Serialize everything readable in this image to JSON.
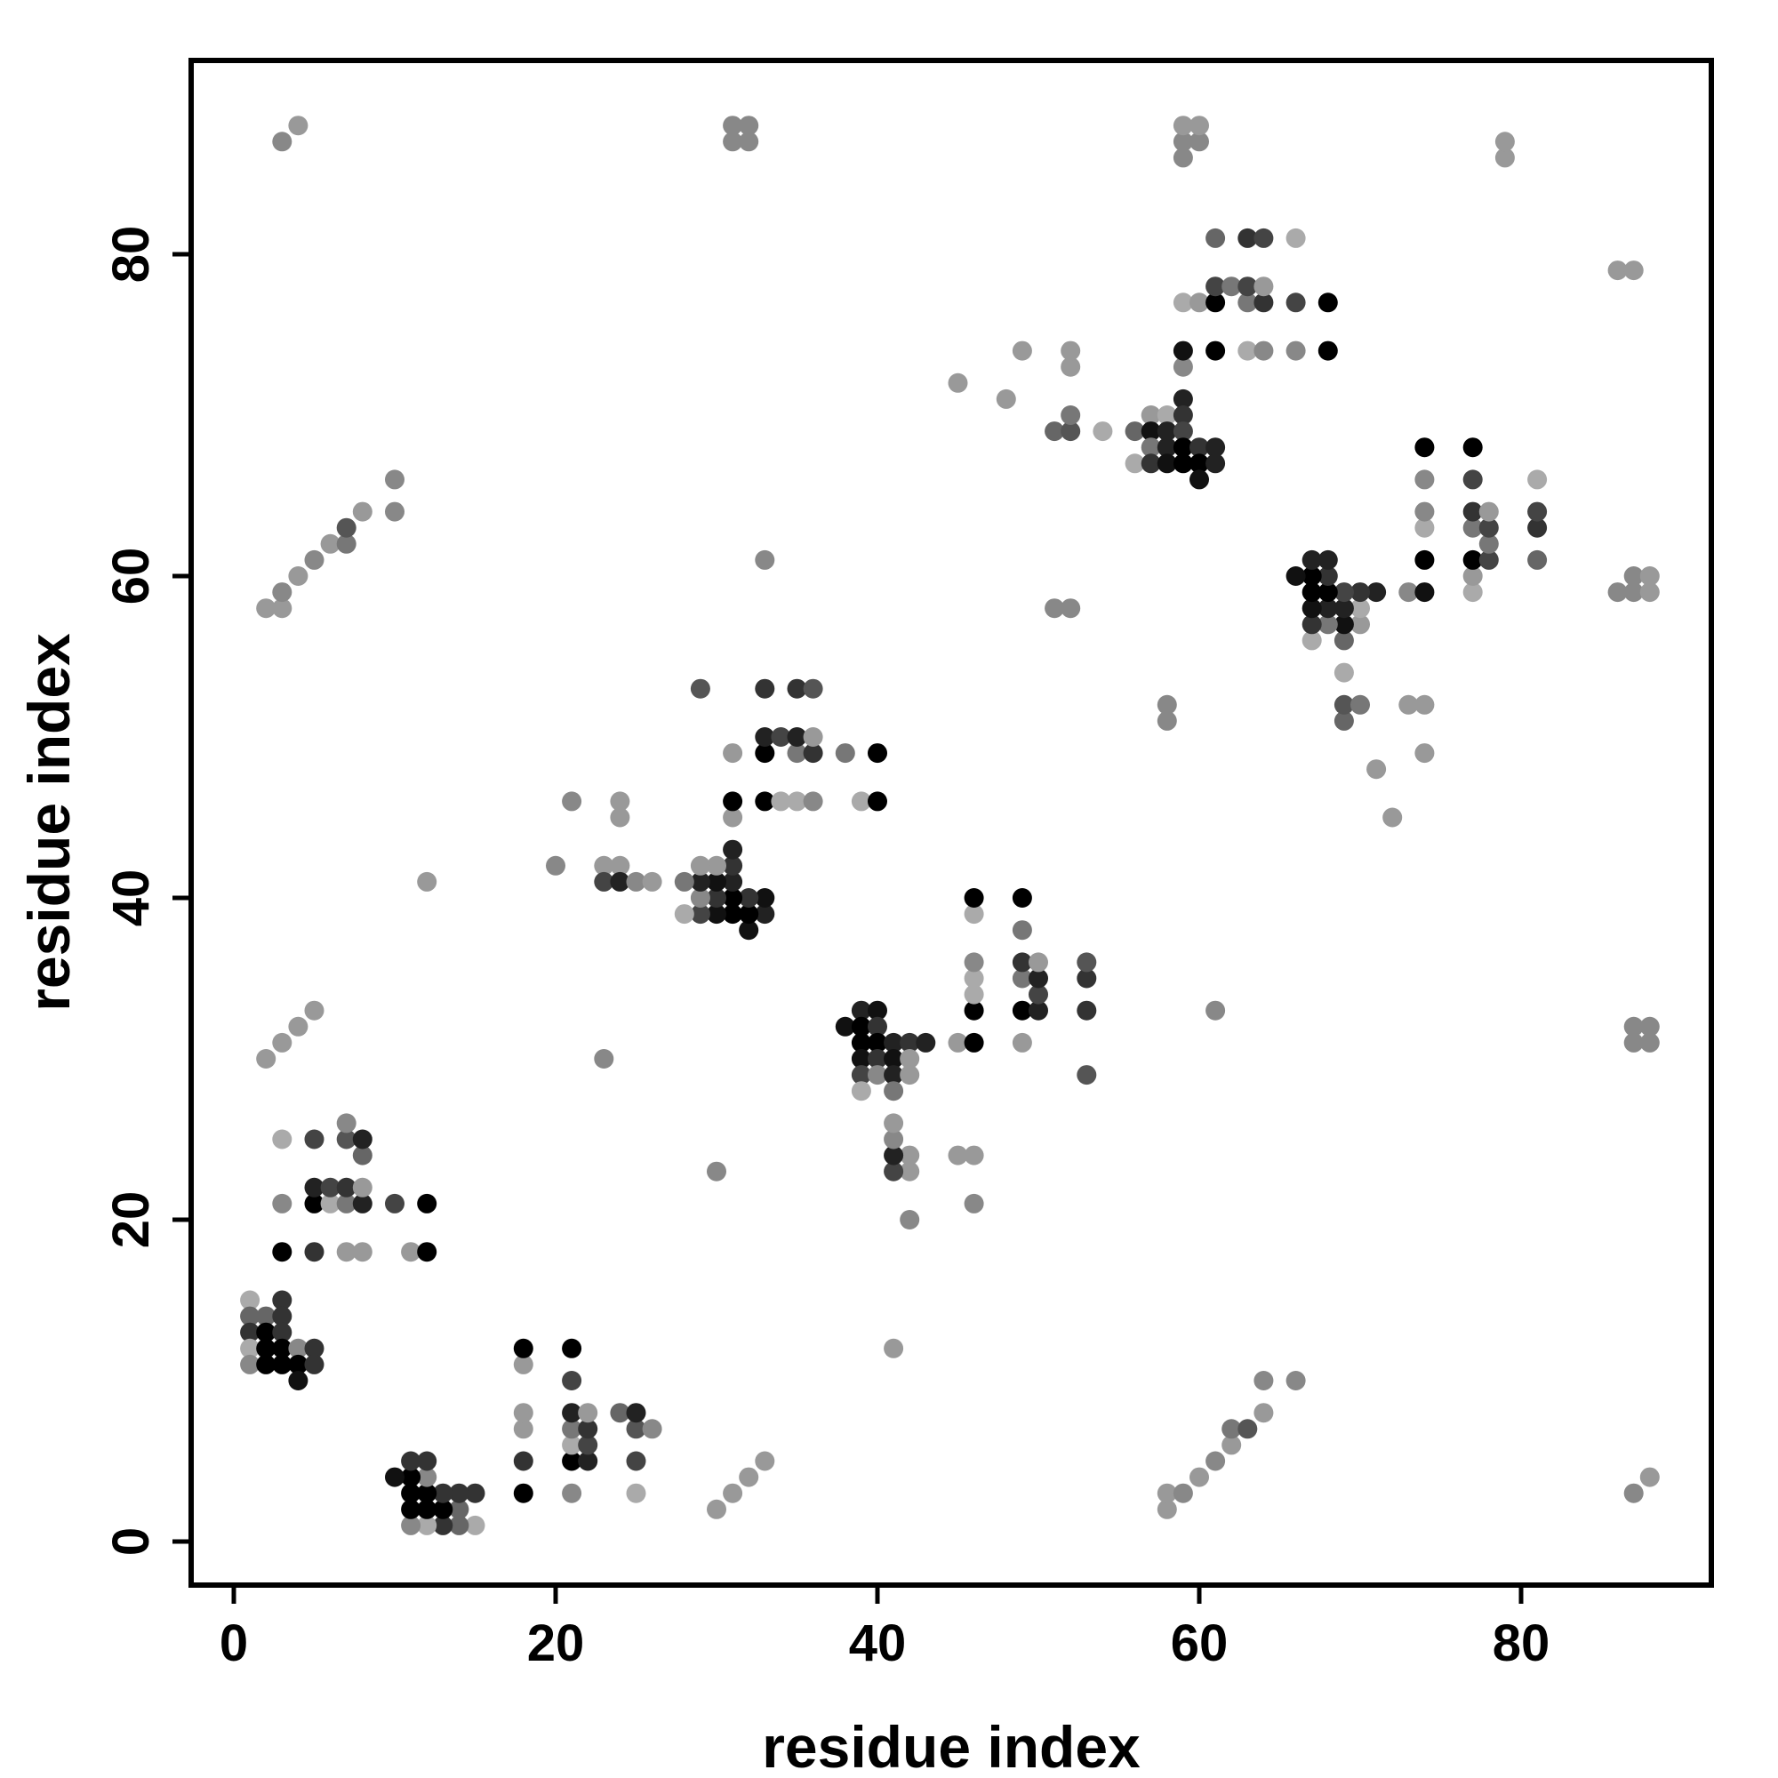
{
  "chart_data": {
    "type": "scatter",
    "title": "",
    "xlabel": "residue index",
    "ylabel": "residue index",
    "x_ticks": [
      0,
      20,
      40,
      60,
      80
    ],
    "y_ticks": [
      0,
      20,
      40,
      60,
      80
    ],
    "xlim": [
      -2.9,
      91.9
    ],
    "ylim": [
      -2.9,
      91.9
    ],
    "grid": false,
    "legend": "none",
    "symmetric_mirror": true,
    "point_radius_px": 11,
    "contacts": [
      [
        1,
        15,
        "#aaaaaa"
      ],
      [
        3,
        15,
        "#333333"
      ],
      [
        1,
        14,
        "#666666"
      ],
      [
        2,
        14,
        "#666666"
      ],
      [
        3,
        14,
        "#333333"
      ],
      [
        1,
        13,
        "#333333"
      ],
      [
        2,
        13,
        "#000000"
      ],
      [
        3,
        13,
        "#333333"
      ],
      [
        1,
        12,
        "#aaaaaa"
      ],
      [
        2,
        12,
        "#000000"
      ],
      [
        3,
        12,
        "#000000"
      ],
      [
        4,
        12,
        "#888888"
      ],
      [
        5,
        12,
        "#333333"
      ],
      [
        1,
        11,
        "#888888"
      ],
      [
        2,
        11,
        "#000000"
      ],
      [
        3,
        11,
        "#000000"
      ],
      [
        4,
        11,
        "#000000"
      ],
      [
        5,
        11,
        "#333333"
      ],
      [
        4,
        10,
        "#111111"
      ],
      [
        3,
        18,
        "#000000"
      ],
      [
        5,
        18,
        "#333333"
      ],
      [
        7,
        18,
        "#999999"
      ],
      [
        8,
        18,
        "#999999"
      ],
      [
        11,
        18,
        "#999999"
      ],
      [
        12,
        18,
        "#000000"
      ],
      [
        3,
        21,
        "#888888"
      ],
      [
        5,
        21,
        "#000000"
      ],
      [
        6,
        21,
        "#aaaaaa"
      ],
      [
        7,
        21,
        "#777777"
      ],
      [
        8,
        21,
        "#222222"
      ],
      [
        10,
        21,
        "#444444"
      ],
      [
        12,
        21,
        "#000000"
      ],
      [
        5,
        22,
        "#222222"
      ],
      [
        6,
        22,
        "#444444"
      ],
      [
        7,
        22,
        "#333333"
      ],
      [
        8,
        22,
        "#999999"
      ],
      [
        8,
        24,
        "#666666"
      ],
      [
        3,
        25,
        "#aaaaaa"
      ],
      [
        5,
        25,
        "#444444"
      ],
      [
        7,
        25,
        "#555555"
      ],
      [
        8,
        25,
        "#222222"
      ],
      [
        7,
        26,
        "#888888"
      ],
      [
        2,
        30,
        "#999999"
      ],
      [
        3,
        31,
        "#999999"
      ],
      [
        4,
        32,
        "#999999"
      ],
      [
        5,
        33,
        "#999999"
      ],
      [
        23,
        30,
        "#888888"
      ],
      [
        12,
        41,
        "#999999"
      ],
      [
        20,
        42,
        "#888888"
      ],
      [
        23,
        42,
        "#999999"
      ],
      [
        24,
        42,
        "#999999"
      ],
      [
        23,
        41,
        "#444444"
      ],
      [
        24,
        41,
        "#222222"
      ],
      [
        25,
        41,
        "#888888"
      ],
      [
        26,
        41,
        "#999999"
      ],
      [
        24,
        45,
        "#999999"
      ],
      [
        24,
        46,
        "#999999"
      ],
      [
        21,
        46,
        "#888888"
      ],
      [
        2,
        58,
        "#999999"
      ],
      [
        3,
        58,
        "#999999"
      ],
      [
        3,
        59,
        "#888888"
      ],
      [
        4,
        60,
        "#999999"
      ],
      [
        5,
        61,
        "#888888"
      ],
      [
        6,
        62,
        "#999999"
      ],
      [
        7,
        62,
        "#777777"
      ],
      [
        7,
        63,
        "#555555"
      ],
      [
        8,
        64,
        "#999999"
      ],
      [
        10,
        64,
        "#888888"
      ],
      [
        10,
        66,
        "#888888"
      ],
      [
        3,
        87,
        "#888888"
      ],
      [
        4,
        88,
        "#999999"
      ],
      [
        31,
        87,
        "#888888"
      ],
      [
        32,
        87,
        "#888888"
      ],
      [
        31,
        88,
        "#888888"
      ],
      [
        32,
        88,
        "#888888"
      ],
      [
        33,
        61,
        "#888888"
      ],
      [
        33,
        39,
        "#222222"
      ],
      [
        33,
        40,
        "#111111"
      ],
      [
        32,
        38,
        "#111111"
      ],
      [
        32,
        39,
        "#000000"
      ],
      [
        32,
        40,
        "#333333"
      ],
      [
        31,
        39,
        "#000000"
      ],
      [
        31,
        40,
        "#000000"
      ],
      [
        31,
        41,
        "#222222"
      ],
      [
        31,
        42,
        "#333333"
      ],
      [
        31,
        43,
        "#222222"
      ],
      [
        30,
        39,
        "#111111"
      ],
      [
        30,
        40,
        "#333333"
      ],
      [
        30,
        41,
        "#111111"
      ],
      [
        30,
        42,
        "#999999"
      ],
      [
        29,
        39,
        "#444444"
      ],
      [
        29,
        40,
        "#888888"
      ],
      [
        29,
        41,
        "#222222"
      ],
      [
        29,
        42,
        "#999999"
      ],
      [
        28,
        39,
        "#aaaaaa"
      ],
      [
        28,
        41,
        "#777777"
      ],
      [
        31,
        45,
        "#999999"
      ],
      [
        31,
        46,
        "#000000"
      ],
      [
        33,
        46,
        "#000000"
      ],
      [
        34,
        46,
        "#aaaaaa"
      ],
      [
        35,
        46,
        "#aaaaaa"
      ],
      [
        36,
        46,
        "#888888"
      ],
      [
        39,
        46,
        "#aaaaaa"
      ],
      [
        40,
        46,
        "#000000"
      ],
      [
        31,
        49,
        "#999999"
      ],
      [
        33,
        49,
        "#000000"
      ],
      [
        35,
        49,
        "#777777"
      ],
      [
        36,
        49,
        "#333333"
      ],
      [
        38,
        49,
        "#777777"
      ],
      [
        40,
        49,
        "#000000"
      ],
      [
        33,
        50,
        "#222222"
      ],
      [
        34,
        50,
        "#444444"
      ],
      [
        35,
        50,
        "#222222"
      ],
      [
        36,
        50,
        "#999999"
      ],
      [
        33,
        53,
        "#333333"
      ],
      [
        35,
        53,
        "#333333"
      ],
      [
        36,
        53,
        "#555555"
      ],
      [
        29,
        53,
        "#555555"
      ],
      [
        51,
        58,
        "#888888"
      ],
      [
        52,
        58,
        "#888888"
      ],
      [
        45,
        72,
        "#999999"
      ],
      [
        48,
        71,
        "#999999"
      ],
      [
        49,
        74,
        "#999999"
      ],
      [
        51,
        69,
        "#666666"
      ],
      [
        52,
        69,
        "#555555"
      ],
      [
        54,
        69,
        "#aaaaaa"
      ],
      [
        52,
        70,
        "#777777"
      ],
      [
        52,
        73,
        "#999999"
      ],
      [
        52,
        74,
        "#999999"
      ],
      [
        59,
        71,
        "#222222"
      ],
      [
        57,
        70,
        "#999999"
      ],
      [
        58,
        70,
        "#aaaaaa"
      ],
      [
        59,
        70,
        "#333333"
      ],
      [
        56,
        69,
        "#666666"
      ],
      [
        57,
        69,
        "#111111"
      ],
      [
        58,
        69,
        "#222222"
      ],
      [
        59,
        69,
        "#444444"
      ],
      [
        57,
        68,
        "#777777"
      ],
      [
        58,
        68,
        "#222222"
      ],
      [
        59,
        68,
        "#000000"
      ],
      [
        60,
        68,
        "#333333"
      ],
      [
        61,
        68,
        "#222222"
      ],
      [
        56,
        67,
        "#aaaaaa"
      ],
      [
        57,
        67,
        "#333333"
      ],
      [
        58,
        67,
        "#111111"
      ],
      [
        59,
        67,
        "#000000"
      ],
      [
        60,
        67,
        "#000000"
      ],
      [
        61,
        67,
        "#222222"
      ],
      [
        60,
        66,
        "#111111"
      ],
      [
        59,
        73,
        "#888888"
      ],
      [
        59,
        74,
        "#111111"
      ],
      [
        59,
        77,
        "#aaaaaa"
      ],
      [
        60,
        77,
        "#999999"
      ],
      [
        61,
        74,
        "#000000"
      ],
      [
        63,
        74,
        "#aaaaaa"
      ],
      [
        64,
        74,
        "#888888"
      ],
      [
        66,
        74,
        "#888888"
      ],
      [
        68,
        74,
        "#000000"
      ],
      [
        61,
        77,
        "#000000"
      ],
      [
        63,
        77,
        "#777777"
      ],
      [
        64,
        77,
        "#333333"
      ],
      [
        66,
        77,
        "#444444"
      ],
      [
        68,
        77,
        "#000000"
      ],
      [
        61,
        78,
        "#444444"
      ],
      [
        62,
        78,
        "#777777"
      ],
      [
        63,
        78,
        "#444444"
      ],
      [
        64,
        78,
        "#999999"
      ],
      [
        61,
        81,
        "#666666"
      ],
      [
        63,
        81,
        "#333333"
      ],
      [
        64,
        81,
        "#444444"
      ],
      [
        66,
        81,
        "#aaaaaa"
      ],
      [
        79,
        86,
        "#999999"
      ],
      [
        79,
        87,
        "#999999"
      ],
      [
        59,
        86,
        "#888888"
      ],
      [
        59,
        87,
        "#888888"
      ],
      [
        60,
        87,
        "#888888"
      ],
      [
        59,
        88,
        "#999999"
      ],
      [
        60,
        88,
        "#999999"
      ]
    ]
  }
}
